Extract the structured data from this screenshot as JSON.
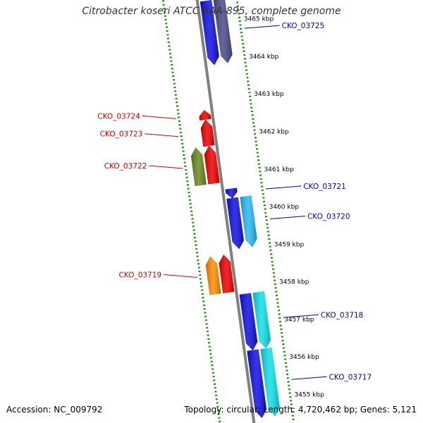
{
  "title": "Citrobacter koseri ATCC BAA-895, complete genome",
  "footer": {
    "accession": "Accession: NC_009792",
    "stats": "Topology: circular; Length: 4,720,462 bp; Genes: 5,121"
  },
  "colors": {
    "backbone": "#808080",
    "tick": "#2a8a1a",
    "reverse_label": "#cc0000",
    "forward_label": "#0000bb",
    "gene_blue": "#1010e0",
    "gene_slate": "#4a4a8a",
    "gene_cyan_light": "#2ab8f0",
    "gene_cyan": "#10e0e8",
    "gene_red": "#ee0000",
    "gene_olive": "#6a8a20",
    "gene_orange": "#ff8c00"
  },
  "scale": [
    {
      "label": "3465 kbp",
      "kbp": 3465
    },
    {
      "label": "3464 kbp",
      "kbp": 3464
    },
    {
      "label": "3463 kbp",
      "kbp": 3463
    },
    {
      "label": "3462 kbp",
      "kbp": 3462
    },
    {
      "label": "3461 kbp",
      "kbp": 3461
    },
    {
      "label": "3460 kbp",
      "kbp": 3460
    },
    {
      "label": "3459 kbp",
      "kbp": 3459
    },
    {
      "label": "3458 kbp",
      "kbp": 3458
    },
    {
      "label": "3457 kbp",
      "kbp": 3457
    },
    {
      "label": "3456 kbp",
      "kbp": 3456
    },
    {
      "label": "3455 kbp",
      "kbp": 3455
    }
  ],
  "genes": [
    {
      "label": "CKO_03725",
      "strand": "forward",
      "lane": 1,
      "start_kbp": 3463.9,
      "end_kbp": 3465.6,
      "color": "gene_blue",
      "labeled": false
    },
    {
      "label": "CKO_03725",
      "strand": "forward",
      "lane": 2,
      "start_kbp": 3463.9,
      "end_kbp": 3465.6,
      "color": "gene_slate",
      "labeled": true
    },
    {
      "label": "CKO_03724",
      "strand": "reverse",
      "lane": 1,
      "start_kbp": 3462.5,
      "end_kbp": 3462.75,
      "color": "gene_red",
      "labeled": true
    },
    {
      "label": "CKO_03723",
      "strand": "reverse",
      "lane": 1,
      "start_kbp": 3461.8,
      "end_kbp": 3462.5,
      "color": "gene_red",
      "labeled": true
    },
    {
      "label": "CKO_03722",
      "strand": "reverse",
      "lane": 1,
      "start_kbp": 3460.8,
      "end_kbp": 3461.8,
      "color": "gene_red",
      "labeled": false
    },
    {
      "label": "CKO_03722",
      "strand": "reverse",
      "lane": 2,
      "start_kbp": 3460.8,
      "end_kbp": 3461.8,
      "color": "gene_olive",
      "labeled": true
    },
    {
      "label": "CKO_03721",
      "strand": "forward",
      "lane": 1,
      "start_kbp": 3460.35,
      "end_kbp": 3460.6,
      "color": "gene_blue",
      "labeled": true
    },
    {
      "label": "CKO_03720",
      "strand": "forward",
      "lane": 1,
      "start_kbp": 3459.0,
      "end_kbp": 3460.35,
      "color": "gene_blue",
      "labeled": false
    },
    {
      "label": "CKO_03720",
      "strand": "forward",
      "lane": 2,
      "start_kbp": 3459.0,
      "end_kbp": 3460.35,
      "color": "gene_cyan_light",
      "labeled": true
    },
    {
      "label": "CKO_03719",
      "strand": "reverse",
      "lane": 1,
      "start_kbp": 3457.9,
      "end_kbp": 3458.9,
      "color": "gene_red",
      "labeled": false
    },
    {
      "label": "CKO_03719",
      "strand": "reverse",
      "lane": 2,
      "start_kbp": 3457.9,
      "end_kbp": 3458.9,
      "color": "gene_orange",
      "labeled": true
    },
    {
      "label": "CKO_03718",
      "strand": "forward",
      "lane": 1,
      "start_kbp": 3456.3,
      "end_kbp": 3457.8,
      "color": "gene_blue",
      "labeled": false
    },
    {
      "label": "CKO_03718",
      "strand": "forward",
      "lane": 2,
      "start_kbp": 3456.3,
      "end_kbp": 3457.8,
      "color": "gene_cyan",
      "labeled": true
    },
    {
      "label": "CKO_03717",
      "strand": "forward",
      "lane": 1,
      "start_kbp": 3454.5,
      "end_kbp": 3456.3,
      "color": "gene_blue",
      "labeled": false
    },
    {
      "label": "CKO_03717",
      "strand": "forward",
      "lane": 2,
      "start_kbp": 3454.5,
      "end_kbp": 3456.3,
      "color": "gene_cyan",
      "labeled": true
    }
  ]
}
